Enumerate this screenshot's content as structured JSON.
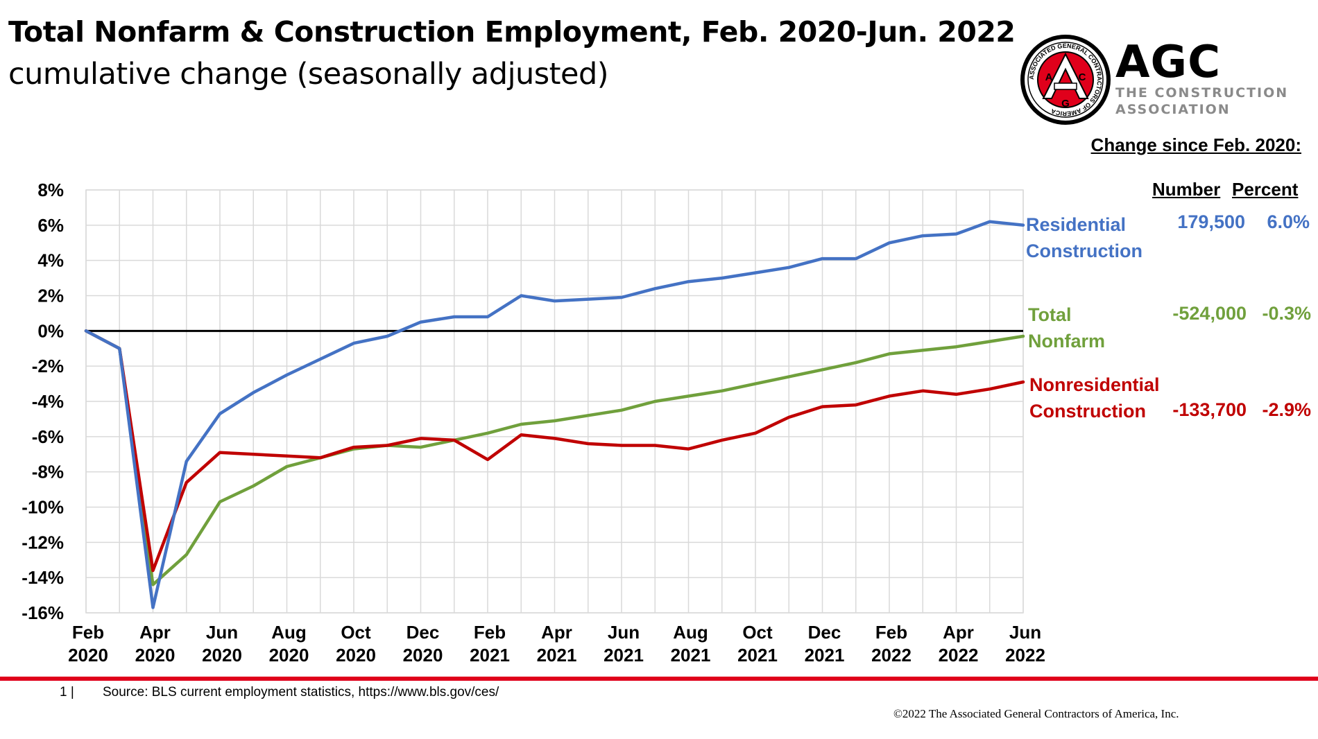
{
  "header": {
    "title": "Total Nonfarm & Construction Employment, Feb. 2020-Jun. 2022",
    "subtitle": "cumulative change (seasonally adjusted)"
  },
  "logo": {
    "name": "AGC",
    "tagline_1": "THE CONSTRUCTION",
    "tagline_2": "ASSOCIATION",
    "seal_text": "ASSOCIATED GENERAL CONTRACTORS OF AMERICA",
    "seal_letters": [
      "A",
      "G",
      "C"
    ]
  },
  "summary": {
    "heading": "Change since Feb. 2020:",
    "col_number": "Number",
    "col_percent": "Percent",
    "rows": [
      {
        "label_1": "Residential",
        "label_2": "Construction",
        "number": "179,500",
        "percent": "6.0%",
        "color": "#4472c4"
      },
      {
        "label_1": "Total",
        "label_2": "Nonfarm",
        "number": "-524,000",
        "percent": "-0.3%",
        "color": "#70a03c"
      },
      {
        "label_1": "Nonresidential",
        "label_2": "Construction",
        "number": "-133,700",
        "percent": "-2.9%",
        "color": "#c00000"
      }
    ]
  },
  "chart_data": {
    "type": "line",
    "title": "Total Nonfarm & Construction Employment, Feb. 2020-Jun. 2022",
    "ylabel": "cumulative change (seasonally adjusted)",
    "ylim": [
      -16,
      8
    ],
    "yticks": [
      "8%",
      "6%",
      "4%",
      "2%",
      "0%",
      "-2%",
      "-4%",
      "-6%",
      "-8%",
      "-10%",
      "-12%",
      "-14%",
      "-16%"
    ],
    "x": [
      "Feb 2020",
      "Mar 2020",
      "Apr 2020",
      "May 2020",
      "Jun 2020",
      "Jul 2020",
      "Aug 2020",
      "Sep 2020",
      "Oct 2020",
      "Nov 2020",
      "Dec 2020",
      "Jan 2021",
      "Feb 2021",
      "Mar 2021",
      "Apr 2021",
      "May 2021",
      "Jun 2021",
      "Jul 2021",
      "Aug 2021",
      "Sep 2021",
      "Oct 2021",
      "Nov 2021",
      "Dec 2021",
      "Jan 2022",
      "Feb 2022",
      "Mar 2022",
      "Apr 2022",
      "May 2022",
      "Jun 2022"
    ],
    "xtick_labels": [
      {
        "index": 0,
        "month": "Feb",
        "year": "2020"
      },
      {
        "index": 2,
        "month": "Apr",
        "year": "2020"
      },
      {
        "index": 4,
        "month": "Jun",
        "year": "2020"
      },
      {
        "index": 6,
        "month": "Aug",
        "year": "2020"
      },
      {
        "index": 8,
        "month": "Oct",
        "year": "2020"
      },
      {
        "index": 10,
        "month": "Dec",
        "year": "2020"
      },
      {
        "index": 12,
        "month": "Feb",
        "year": "2021"
      },
      {
        "index": 14,
        "month": "Apr",
        "year": "2021"
      },
      {
        "index": 16,
        "month": "Jun",
        "year": "2021"
      },
      {
        "index": 18,
        "month": "Aug",
        "year": "2021"
      },
      {
        "index": 20,
        "month": "Oct",
        "year": "2021"
      },
      {
        "index": 22,
        "month": "Dec",
        "year": "2021"
      },
      {
        "index": 24,
        "month": "Feb",
        "year": "2022"
      },
      {
        "index": 26,
        "month": "Apr",
        "year": "2022"
      },
      {
        "index": 28,
        "month": "Jun",
        "year": "2022"
      }
    ],
    "grid": true,
    "series": [
      {
        "name": "Residential Construction",
        "color": "#4472c4",
        "values": [
          0,
          -1.0,
          -15.7,
          -7.4,
          -4.7,
          -3.5,
          -2.5,
          -1.6,
          -0.7,
          -0.3,
          0.5,
          0.8,
          0.8,
          2.0,
          1.7,
          1.8,
          1.9,
          2.4,
          2.8,
          3.0,
          3.3,
          3.6,
          4.1,
          4.1,
          5.0,
          5.4,
          5.5,
          6.2,
          6.0
        ]
      },
      {
        "name": "Total Nonfarm",
        "color": "#70a03c",
        "values": [
          0,
          -1.0,
          -14.4,
          -12.7,
          -9.7,
          -8.8,
          -7.7,
          -7.2,
          -6.7,
          -6.5,
          -6.6,
          -6.2,
          -5.8,
          -5.3,
          -5.1,
          -4.8,
          -4.5,
          -4.0,
          -3.7,
          -3.4,
          -3.0,
          -2.6,
          -2.2,
          -1.8,
          -1.3,
          -1.1,
          -0.9,
          -0.6,
          -0.3
        ]
      },
      {
        "name": "Nonresidential Construction",
        "color": "#c00000",
        "values": [
          0,
          -1.0,
          -13.6,
          -8.6,
          -6.9,
          -7.0,
          -7.1,
          -7.2,
          -6.6,
          -6.5,
          -6.1,
          -6.2,
          -7.3,
          -5.9,
          -6.1,
          -6.4,
          -6.5,
          -6.5,
          -6.7,
          -6.2,
          -5.8,
          -4.9,
          -4.3,
          -4.2,
          -3.7,
          -3.4,
          -3.6,
          -3.3,
          -2.9
        ]
      }
    ]
  },
  "footer": {
    "page": "1 |",
    "source": "Source: BLS current employment statistics, https://www.bls.gov/ces/",
    "copyright": "©2022 The Associated General Contractors of America, Inc."
  }
}
